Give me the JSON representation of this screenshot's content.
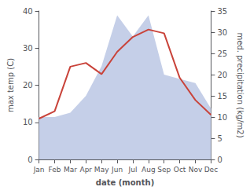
{
  "chart_data": {
    "type": "line",
    "xlabel": "date (month)",
    "ylabel": "max temp (C)",
    "y2label": "med. precipitation (kg/m2)",
    "categories": [
      "Jan",
      "Feb",
      "Mar",
      "Apr",
      "May",
      "Jun",
      "Jul",
      "Aug",
      "Sep",
      "Oct",
      "Nov",
      "Dec"
    ],
    "series": [
      {
        "type": "area",
        "axis": "y2",
        "color": "#c5cfe8",
        "values": [
          10,
          10,
          11,
          15,
          22,
          34,
          29,
          34,
          20,
          19,
          18,
          12
        ]
      },
      {
        "type": "line",
        "color": "#c9433a",
        "values": [
          11,
          13,
          25,
          26,
          23,
          29,
          33,
          35,
          34,
          22,
          16,
          12
        ]
      }
    ],
    "ylim": [
      0,
      40
    ],
    "yticks": [
      0,
      10,
      20,
      30,
      40
    ],
    "y2lim": [
      0,
      35
    ],
    "y2ticks": [
      0,
      5,
      10,
      15,
      20,
      25,
      30,
      35
    ],
    "grid": false
  }
}
